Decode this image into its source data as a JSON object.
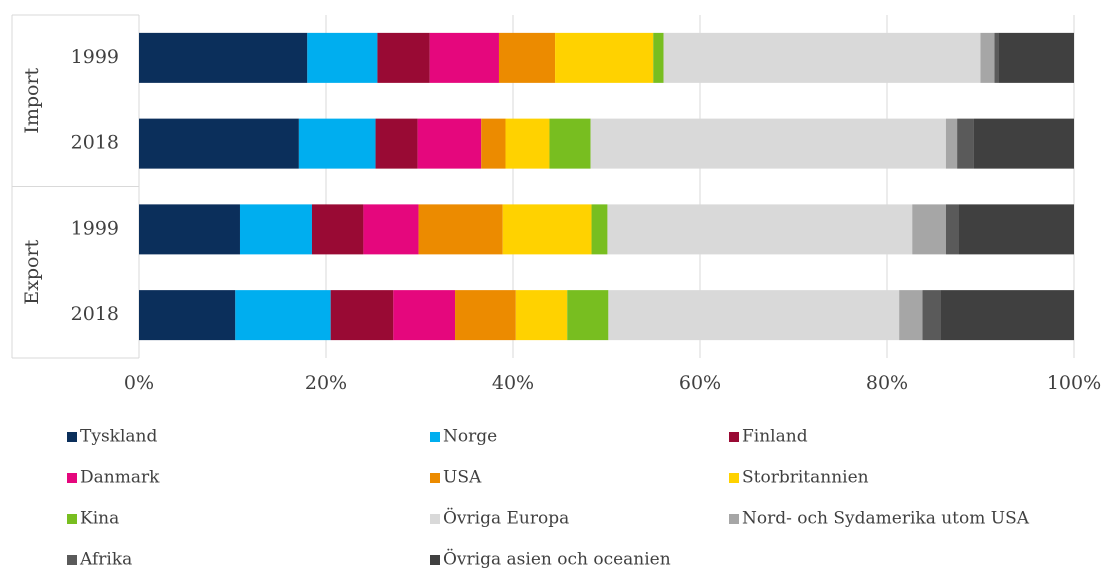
{
  "chart_data": {
    "type": "stacked_barh",
    "categories": [
      "1999",
      "2018",
      "1999",
      "2018"
    ],
    "groups": [
      "Import",
      "Export"
    ],
    "xlim": [
      0,
      100
    ],
    "xticks": [
      {
        "value": 0,
        "label": "0%"
      },
      {
        "value": 20,
        "label": "20%"
      },
      {
        "value": 40,
        "label": "40%"
      },
      {
        "value": 60,
        "label": "60%"
      },
      {
        "value": 80,
        "label": "80%"
      },
      {
        "value": 100,
        "label": "100%"
      }
    ],
    "grid": true,
    "legend": "bottom",
    "series": [
      {
        "name": "Tyskland",
        "color": "#0b2f5b",
        "values": [
          18.0,
          17.1,
          10.8,
          10.3
        ]
      },
      {
        "name": "Norge",
        "color": "#00aeef",
        "values": [
          7.5,
          8.2,
          7.7,
          10.2
        ]
      },
      {
        "name": "Finland",
        "color": "#990a34",
        "values": [
          5.6,
          4.5,
          5.5,
          6.7
        ]
      },
      {
        "name": "Danmark",
        "color": "#e5077d",
        "values": [
          7.4,
          6.8,
          5.9,
          6.6
        ]
      },
      {
        "name": "USA",
        "color": "#ec8b00",
        "values": [
          6.0,
          2.6,
          9.0,
          6.5
        ]
      },
      {
        "name": "Storbritannien",
        "color": "#ffd200",
        "values": [
          10.5,
          4.7,
          9.5,
          5.5
        ]
      },
      {
        "name": "Kina",
        "color": "#78be20",
        "values": [
          1.1,
          4.4,
          1.7,
          4.4
        ]
      },
      {
        "name": "Övriga Europa",
        "color": "#d9d9d9",
        "values": [
          33.9,
          38.0,
          32.6,
          31.1
        ]
      },
      {
        "name": "Nord- och Sydamerika utom USA",
        "color": "#a6a6a6",
        "values": [
          1.5,
          1.2,
          3.6,
          2.5
        ]
      },
      {
        "name": "Afrika",
        "color": "#5a5a5a",
        "values": [
          0.4,
          1.8,
          1.4,
          1.9
        ]
      },
      {
        "name": "Övriga asien och oceanien",
        "color": "#404040",
        "values": [
          8.1,
          10.7,
          12.3,
          14.3
        ]
      }
    ]
  }
}
